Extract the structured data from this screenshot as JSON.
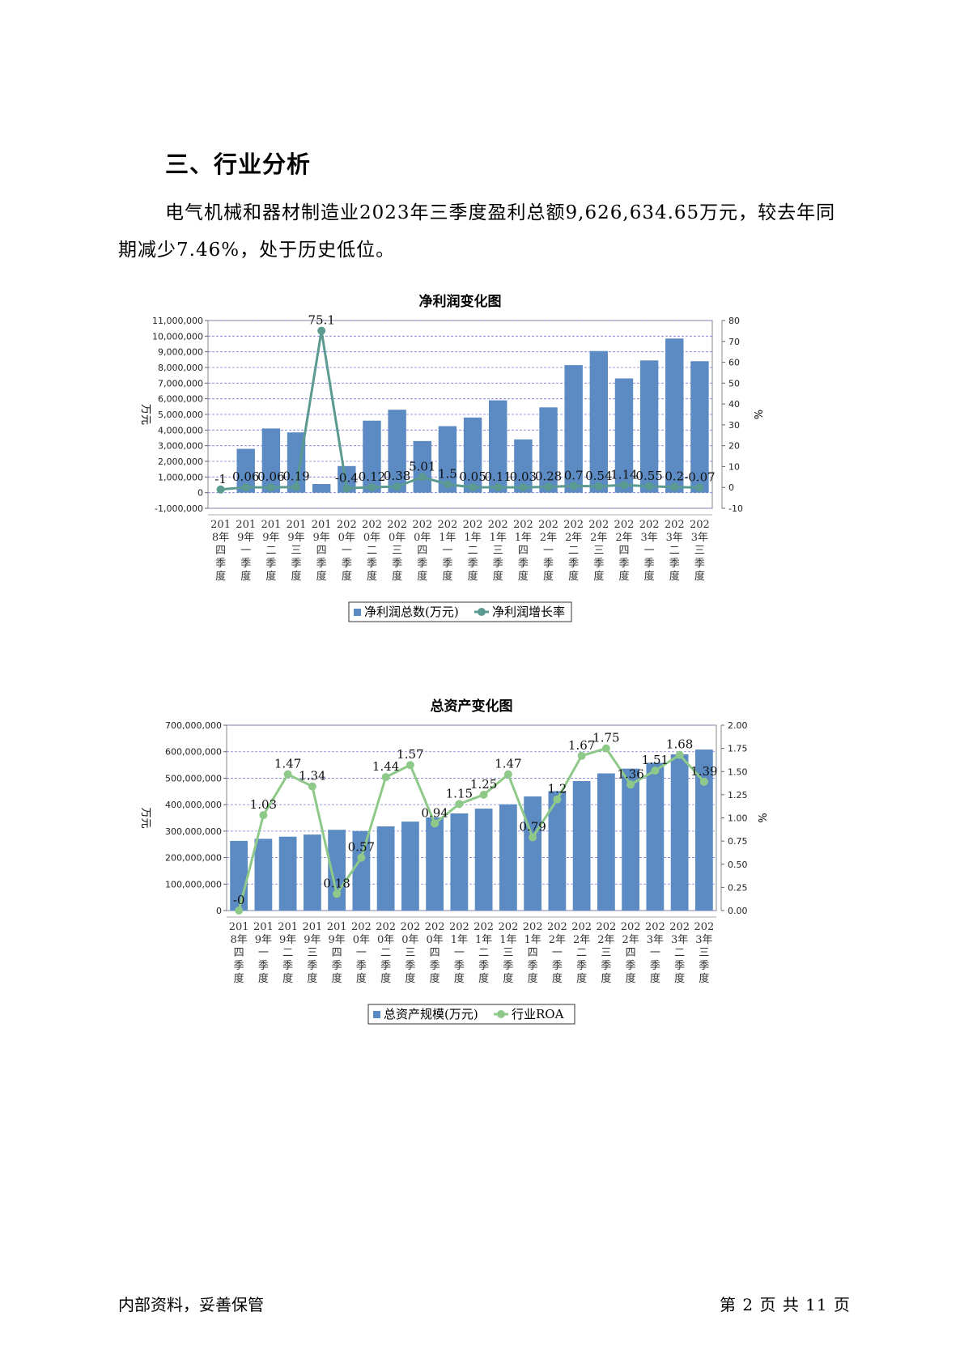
{
  "section_title": "三、行业分析",
  "paragraph": "电气机械和器材制造业2023年三季度盈利总额9,626,634.65万元，较去年同期减少7.46%，处于历史低位。",
  "footer": {
    "left": "内部资料，妥善保管",
    "right": "第 2 页   共 11 页"
  },
  "colors": {
    "bar": "#5b8bc2",
    "line1": "#5a9a90",
    "line2": "#8fc98a",
    "grid": "#7b7bd6"
  },
  "chart_data": [
    {
      "type": "bar",
      "title": "净利润变化图",
      "ylabel": "万元",
      "y2label": "%",
      "categories": [
        "2018年四季度",
        "2019年一季度",
        "2019年二季度",
        "2019年三季度",
        "2019年四季度",
        "2020年一季度",
        "2020年二季度",
        "2020年三季度",
        "2020年四季度",
        "2021年一季度",
        "2021年二季度",
        "2021年三季度",
        "2021年四季度",
        "2022年一季度",
        "2022年二季度",
        "2022年三季度",
        "2022年四季度",
        "2023年一季度",
        "2023年二季度",
        "2023年三季度"
      ],
      "category_lines": [
        [
          "201",
          "8年",
          "四",
          "季",
          "度"
        ],
        [
          "201",
          "9年",
          "一",
          "季",
          "度"
        ],
        [
          "201",
          "9年",
          "二",
          "季",
          "度"
        ],
        [
          "201",
          "9年",
          "三",
          "季",
          "度"
        ],
        [
          "201",
          "9年",
          "四",
          "季",
          "度"
        ],
        [
          "202",
          "0年",
          "一",
          "季",
          "度"
        ],
        [
          "202",
          "0年",
          "二",
          "季",
          "度"
        ],
        [
          "202",
          "0年",
          "三",
          "季",
          "度"
        ],
        [
          "202",
          "0年",
          "四",
          "季",
          "度"
        ],
        [
          "202",
          "1年",
          "一",
          "季",
          "度"
        ],
        [
          "202",
          "1年",
          "二",
          "季",
          "度"
        ],
        [
          "202",
          "1年",
          "三",
          "季",
          "度"
        ],
        [
          "202",
          "1年",
          "四",
          "季",
          "度"
        ],
        [
          "202",
          "2年",
          "一",
          "季",
          "度"
        ],
        [
          "202",
          "2年",
          "二",
          "季",
          "度"
        ],
        [
          "202",
          "2年",
          "三",
          "季",
          "度"
        ],
        [
          "202",
          "2年",
          "四",
          "季",
          "度"
        ],
        [
          "202",
          "3年",
          "一",
          "季",
          "度"
        ],
        [
          "202",
          "3年",
          "二",
          "季",
          "度"
        ],
        [
          "202",
          "3年",
          "三",
          "季",
          "度"
        ]
      ],
      "ylim": [
        -1000000,
        11000000
      ],
      "yticks": [
        -1000000,
        0,
        1000000,
        2000000,
        3000000,
        4000000,
        5000000,
        6000000,
        7000000,
        8000000,
        9000000,
        10000000,
        11000000
      ],
      "ytick_labels": [
        "-1,000,000",
        "0",
        "1,000,000",
        "2,000,000",
        "3,000,000",
        "4,000,000",
        "5,000,000",
        "6,000,000",
        "7,000,000",
        "8,000,000",
        "9,000,000",
        "10,000,000",
        "11,000,000"
      ],
      "y2lim": [
        -10,
        80
      ],
      "y2ticks": [
        -10,
        0,
        10,
        20,
        30,
        40,
        50,
        60,
        70,
        80
      ],
      "y2tick_labels": [
        "-10",
        "0",
        "10",
        "20",
        "30",
        "40",
        "50",
        "60",
        "70",
        "80"
      ],
      "grid": true,
      "legend_position": "bottom",
      "series": [
        {
          "name": "净利润总数(万元)",
          "type": "bar",
          "values": [
            0,
            2800000,
            4100000,
            3850000,
            550000,
            1700000,
            4600000,
            5300000,
            3300000,
            4250000,
            4800000,
            5900000,
            3400000,
            5450000,
            8150000,
            9050000,
            7300000,
            8450000,
            9850000,
            8400000
          ]
        },
        {
          "name": "净利润增长率",
          "type": "line",
          "axis": "right",
          "values": [
            -1,
            0.06,
            0.06,
            0.19,
            75.1,
            -0.4,
            0.12,
            0.38,
            5.01,
            1.5,
            0.05,
            0.11,
            0.03,
            0.28,
            0.7,
            0.54,
            1.14,
            0.55,
            0.2,
            -0.07
          ],
          "labels": [
            "-1",
            "0.06",
            "0.06",
            "0.19",
            "75.1",
            "-0.4",
            "0.12",
            "0.38",
            "5.01",
            "1.5",
            "0.05",
            "0.11",
            "0.03",
            "0.28",
            "0.7",
            "0.54",
            "1.14",
            "0.55",
            "0.2",
            "-0.07"
          ]
        }
      ]
    },
    {
      "type": "bar",
      "title": "总资产变化图",
      "ylabel": "万元",
      "y2label": "%",
      "categories": [
        "2018年四季度",
        "2019年一季度",
        "2019年二季度",
        "2019年三季度",
        "2019年四季度",
        "2020年一季度",
        "2020年二季度",
        "2020年三季度",
        "2020年四季度",
        "2021年一季度",
        "2021年二季度",
        "2021年三季度",
        "2021年四季度",
        "2022年一季度",
        "2022年二季度",
        "2022年三季度",
        "2022年四季度",
        "2023年一季度",
        "2023年二季度",
        "2023年三季度"
      ],
      "category_lines": [
        [
          "201",
          "8年",
          "四",
          "季",
          "度"
        ],
        [
          "201",
          "9年",
          "一",
          "季",
          "度"
        ],
        [
          "201",
          "9年",
          "二",
          "季",
          "度"
        ],
        [
          "201",
          "9年",
          "三",
          "季",
          "度"
        ],
        [
          "201",
          "9年",
          "四",
          "季",
          "度"
        ],
        [
          "202",
          "0年",
          "一",
          "季",
          "度"
        ],
        [
          "202",
          "0年",
          "二",
          "季",
          "度"
        ],
        [
          "202",
          "0年",
          "三",
          "季",
          "度"
        ],
        [
          "202",
          "0年",
          "四",
          "季",
          "度"
        ],
        [
          "202",
          "1年",
          "一",
          "季",
          "度"
        ],
        [
          "202",
          "1年",
          "二",
          "季",
          "度"
        ],
        [
          "202",
          "1年",
          "三",
          "季",
          "度"
        ],
        [
          "202",
          "1年",
          "四",
          "季",
          "度"
        ],
        [
          "202",
          "2年",
          "一",
          "季",
          "度"
        ],
        [
          "202",
          "2年",
          "二",
          "季",
          "度"
        ],
        [
          "202",
          "2年",
          "三",
          "季",
          "度"
        ],
        [
          "202",
          "2年",
          "四",
          "季",
          "度"
        ],
        [
          "202",
          "3年",
          "一",
          "季",
          "度"
        ],
        [
          "202",
          "3年",
          "二",
          "季",
          "度"
        ],
        [
          "202",
          "3年",
          "三",
          "季",
          "度"
        ]
      ],
      "ylim": [
        0,
        700000000
      ],
      "yticks": [
        0,
        100000000,
        200000000,
        300000000,
        400000000,
        500000000,
        600000000,
        700000000
      ],
      "ytick_labels": [
        "0",
        "100,000,000",
        "200,000,000",
        "300,000,000",
        "400,000,000",
        "500,000,000",
        "600,000,000",
        "700,000,000"
      ],
      "y2lim": [
        0,
        2.0
      ],
      "y2ticks": [
        0,
        0.25,
        0.5,
        0.75,
        1.0,
        1.25,
        1.5,
        1.75,
        2.0
      ],
      "y2tick_labels": [
        "0.00",
        "0.25",
        "0.50",
        "0.75",
        "1.00",
        "1.25",
        "1.50",
        "1.75",
        "2.00"
      ],
      "grid": true,
      "legend_position": "bottom",
      "series": [
        {
          "name": "总资产规模(万元)",
          "type": "bar",
          "values": [
            263000000,
            271000000,
            279000000,
            287000000,
            305000000,
            300000000,
            318000000,
            336000000,
            352000000,
            367000000,
            385000000,
            401000000,
            431000000,
            451000000,
            489000000,
            518000000,
            536000000,
            558000000,
            590000000,
            608000000
          ]
        },
        {
          "name": "行业ROA",
          "type": "line",
          "axis": "right",
          "values": [
            0,
            1.03,
            1.47,
            1.34,
            0.18,
            0.57,
            1.44,
            1.57,
            0.94,
            1.15,
            1.25,
            1.47,
            0.79,
            1.2,
            1.67,
            1.75,
            1.36,
            1.51,
            1.68,
            1.39
          ],
          "labels": [
            "-0",
            "1.03",
            "1.47",
            "1.34",
            "0.18",
            "0.57",
            "1.44",
            "1.57",
            "0.94",
            "1.15",
            "1.25",
            "1.47",
            "0.79",
            "1.2",
            "1.67",
            "1.75",
            "1.36",
            "1.51",
            "1.68",
            "1.39"
          ]
        }
      ]
    }
  ]
}
